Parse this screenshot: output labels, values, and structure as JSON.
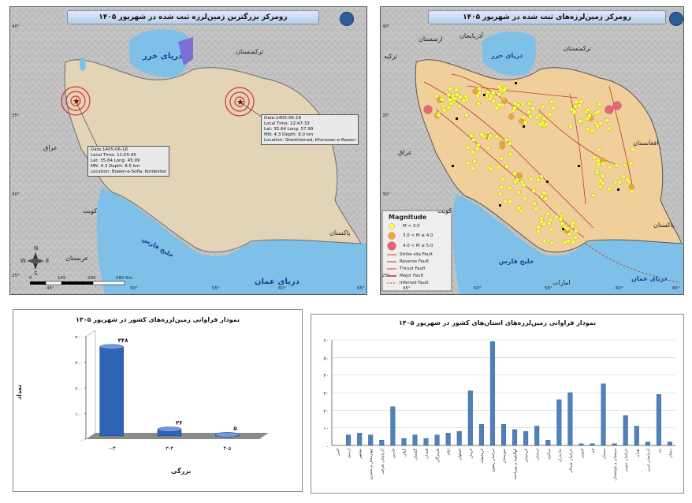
{
  "map1": {
    "title": "رومرکز بزرگترین زمین‌لرزه ثبت شده در شهریور ۱۴۰۵",
    "labels": {
      "caspian": "دریای خزر",
      "turkmenistan": "ترکمنستان",
      "iraq": "عراق",
      "kuwait": "کویت",
      "pakistan": "پاکستان",
      "arabia": "عربستان",
      "gulf": "خلیج فارس",
      "oman_sea": "دریای عمان"
    },
    "event1": {
      "lines": [
        "Date:1405-06-18",
        "Local Time: 11:55:45",
        "Lat: 35.84   Long: 45.99",
        "MN: 4.3   Depth: 8.5 km",
        "Location: Boeen-e-Sofla, Kordestan"
      ]
    },
    "event2": {
      "lines": [
        "Date:1405-06-18",
        "Local Time: 22:47:33",
        "Lat: 35.64   Long: 57.99",
        "MN: 4.3   Depth: 8.0 km",
        "Location: Sheshtamad, Khorasan-e-Razavi"
      ]
    },
    "lon_ticks": [
      "45°",
      "50°",
      "55°",
      "60°",
      "65°"
    ],
    "lat_ticks": [
      "40°",
      "35°",
      "30°",
      "25°"
    ],
    "scale": [
      "0",
      "145",
      "290",
      "580 Km"
    ],
    "compass": {
      "n": "N",
      "s": "S",
      "e": "E",
      "w": "W"
    }
  },
  "map2": {
    "title": "رومرکز زمین‌لرزه‌های ثبت شده در شهریور ۱۴۰۵",
    "labels": {
      "armenia": "ارمنستان",
      "azerbaijan": "آذربایجان",
      "turkey": "ترکیه",
      "caspian": "دریای خزر",
      "turkmenistan": "ترکمنستان",
      "afghanistan": "افغانستان",
      "iraq": "عراق",
      "kuwait": "کویت",
      "pakistan": "پاکستان",
      "gulf": "خلیج فارس",
      "oman_sea": "دریای عمان",
      "emirates": "امارات"
    },
    "legend": {
      "title": "Magnitude",
      "items": [
        "M < 3.0",
        "3.0 < M ≤ 4.0",
        "4.0 < M ≤ 5.0"
      ],
      "faults": [
        "Strike slip Fault",
        "Reverse Fault",
        "Thrust Fault",
        "Major Fault",
        "Inferred Fault"
      ],
      "colors": {
        "small": "#ffff33",
        "mid": "#f5a623",
        "large": "#e8656f"
      }
    },
    "lon_ticks": [
      "45°",
      "50°",
      "55°",
      "60°",
      "65°"
    ],
    "lat_ticks": [
      "40°",
      "35°",
      "30°",
      "25°"
    ]
  },
  "chart1": {
    "title": "نمودار فراوانی زمین‌لرزه‌های کشور در شهریور ۱۴۰۵",
    "xlabel": "بزرگی",
    "ylabel": "تعداد"
  },
  "chart2": {
    "title": "نمودار فراوانی زمین‌لرزه‌های استان‌های کشور در شهریور ۱۴۰۵"
  },
  "chart_data": [
    {
      "type": "bar",
      "title": "نمودار فراوانی زمین‌لرزه‌های کشور در شهریور ۱۴۰۵",
      "xlabel": "بزرگی",
      "ylabel": "تعداد",
      "categories": [
        "۰-۳",
        "۳-۴",
        "۴-۵"
      ],
      "values": [
        348,
        26,
        5
      ],
      "value_labels": [
        "۳۴۸",
        "۲۶",
        "۵"
      ],
      "ytick_labels": [
        "۰",
        "۱۰۰",
        "۲۰۰",
        "۳۰۰",
        "۴۰۰"
      ],
      "ylim": [
        0,
        400
      ]
    },
    {
      "type": "bar",
      "title": "نمودار فراوانی زمین‌لرزه‌های استان‌های کشور در شهریور ۱۴۰۵",
      "categories": [
        "البرز",
        "اردبیل",
        "بوشهر",
        "چهارمحال و بختیاری",
        "آذربایجان شرقی",
        "فارس",
        "گیلان",
        "گلستان",
        "همدان",
        "هرمزگان",
        "ایلام",
        "اصفهان",
        "کرمان",
        "کرمانشاه",
        "خراسان رضوی",
        "خوزستان",
        "کهگیلویه و بویراحمد",
        "کردستان",
        "لرستان",
        "مرکزی",
        "مازندران",
        "خراسان شمالی",
        "قزوین",
        "قم",
        "سمنان",
        "سیستان و بلوچستان",
        "خراسان جنوبی",
        "تهران",
        "آذربایجان غربی",
        "یزد",
        "زنجان"
      ],
      "values": [
        0,
        6,
        7,
        6,
        3,
        22,
        4,
        6,
        4,
        6,
        7,
        8,
        31,
        12,
        59,
        12,
        9,
        8,
        11,
        3,
        26,
        30,
        1,
        1,
        35,
        1,
        17,
        11,
        2,
        29,
        2
      ],
      "ytick_labels": [
        "۰",
        "۱۰",
        "۲۰",
        "۳۰",
        "۴۰",
        "۵۰",
        "۶۰"
      ],
      "ylim": [
        0,
        60
      ]
    }
  ]
}
